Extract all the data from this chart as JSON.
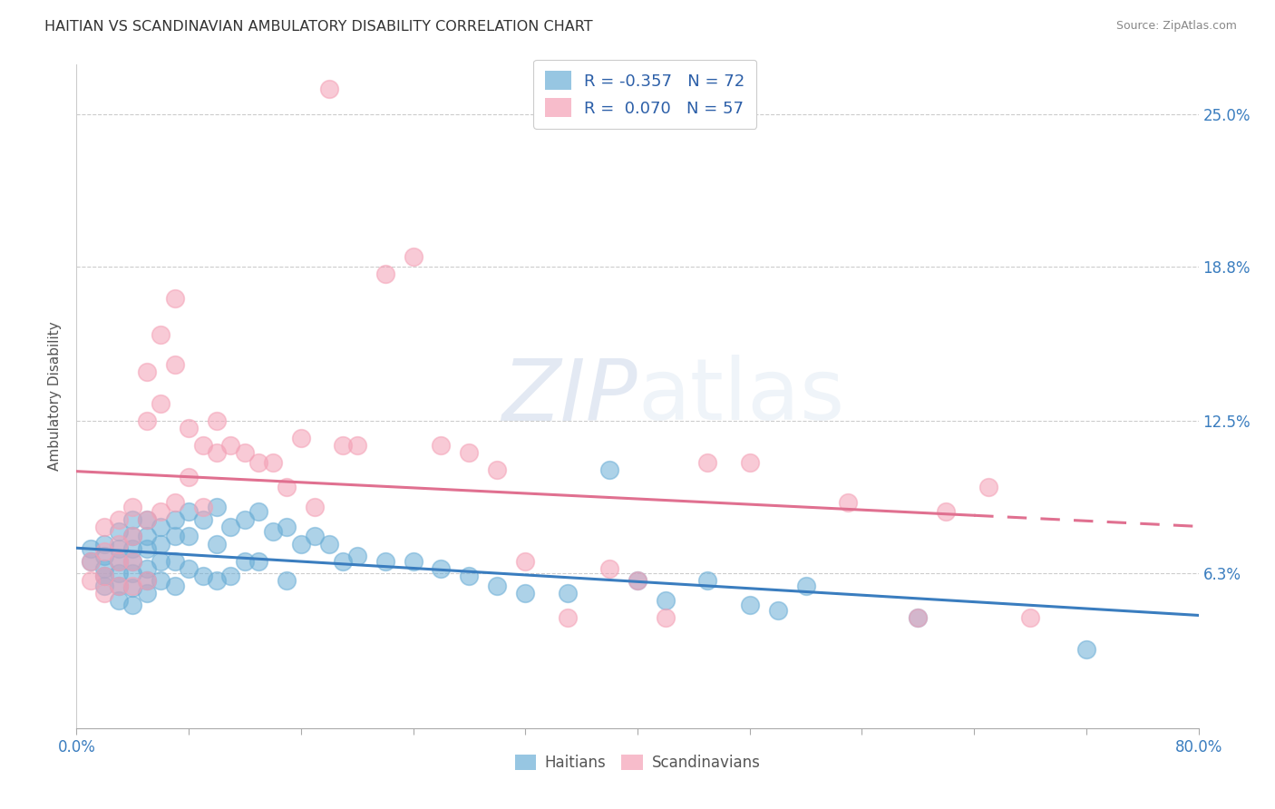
{
  "title": "HAITIAN VS SCANDINAVIAN AMBULATORY DISABILITY CORRELATION CHART",
  "source": "Source: ZipAtlas.com",
  "ylabel": "Ambulatory Disability",
  "ytick_labels": [
    "6.3%",
    "12.5%",
    "18.8%",
    "25.0%"
  ],
  "ytick_values": [
    0.063,
    0.125,
    0.188,
    0.25
  ],
  "xmin": 0.0,
  "xmax": 0.8,
  "ymin": 0.0,
  "ymax": 0.27,
  "haitian_color": "#6baed6",
  "scandinavian_color": "#f4a0b5",
  "haitian_line_color": "#3a7dbf",
  "scandinavian_line_color": "#e07090",
  "legend_R_haitian": "R = -0.357",
  "legend_N_haitian": "N = 72",
  "legend_R_scandinavian": "R =  0.070",
  "legend_N_scandinavian": "N = 57",
  "haitian_x": [
    0.01,
    0.01,
    0.02,
    0.02,
    0.02,
    0.02,
    0.02,
    0.03,
    0.03,
    0.03,
    0.03,
    0.03,
    0.03,
    0.04,
    0.04,
    0.04,
    0.04,
    0.04,
    0.04,
    0.04,
    0.05,
    0.05,
    0.05,
    0.05,
    0.05,
    0.05,
    0.06,
    0.06,
    0.06,
    0.06,
    0.07,
    0.07,
    0.07,
    0.07,
    0.08,
    0.08,
    0.08,
    0.09,
    0.09,
    0.1,
    0.1,
    0.1,
    0.11,
    0.11,
    0.12,
    0.12,
    0.13,
    0.13,
    0.14,
    0.15,
    0.15,
    0.16,
    0.17,
    0.18,
    0.19,
    0.2,
    0.22,
    0.24,
    0.26,
    0.28,
    0.3,
    0.32,
    0.35,
    0.38,
    0.4,
    0.42,
    0.45,
    0.48,
    0.5,
    0.52,
    0.6,
    0.72
  ],
  "haitian_y": [
    0.073,
    0.068,
    0.075,
    0.07,
    0.065,
    0.062,
    0.058,
    0.08,
    0.073,
    0.068,
    0.063,
    0.058,
    0.052,
    0.085,
    0.078,
    0.073,
    0.068,
    0.063,
    0.057,
    0.05,
    0.085,
    0.078,
    0.073,
    0.065,
    0.06,
    0.055,
    0.082,
    0.075,
    0.068,
    0.06,
    0.085,
    0.078,
    0.068,
    0.058,
    0.088,
    0.078,
    0.065,
    0.085,
    0.062,
    0.09,
    0.075,
    0.06,
    0.082,
    0.062,
    0.085,
    0.068,
    0.088,
    0.068,
    0.08,
    0.082,
    0.06,
    0.075,
    0.078,
    0.075,
    0.068,
    0.07,
    0.068,
    0.068,
    0.065,
    0.062,
    0.058,
    0.055,
    0.055,
    0.105,
    0.06,
    0.052,
    0.06,
    0.05,
    0.048,
    0.058,
    0.045,
    0.032
  ],
  "scandinavian_x": [
    0.01,
    0.01,
    0.02,
    0.02,
    0.02,
    0.02,
    0.03,
    0.03,
    0.03,
    0.03,
    0.04,
    0.04,
    0.04,
    0.04,
    0.05,
    0.05,
    0.05,
    0.05,
    0.06,
    0.06,
    0.06,
    0.07,
    0.07,
    0.07,
    0.08,
    0.08,
    0.09,
    0.09,
    0.1,
    0.1,
    0.11,
    0.12,
    0.13,
    0.14,
    0.15,
    0.16,
    0.17,
    0.18,
    0.19,
    0.2,
    0.22,
    0.24,
    0.26,
    0.28,
    0.3,
    0.32,
    0.35,
    0.38,
    0.4,
    0.42,
    0.45,
    0.48,
    0.55,
    0.6,
    0.62,
    0.65,
    0.68
  ],
  "scandinavian_y": [
    0.068,
    0.06,
    0.082,
    0.072,
    0.062,
    0.055,
    0.085,
    0.075,
    0.068,
    0.058,
    0.09,
    0.078,
    0.068,
    0.058,
    0.145,
    0.125,
    0.085,
    0.06,
    0.16,
    0.132,
    0.088,
    0.175,
    0.148,
    0.092,
    0.122,
    0.102,
    0.115,
    0.09,
    0.125,
    0.112,
    0.115,
    0.112,
    0.108,
    0.108,
    0.098,
    0.118,
    0.09,
    0.26,
    0.115,
    0.115,
    0.185,
    0.192,
    0.115,
    0.112,
    0.105,
    0.068,
    0.045,
    0.065,
    0.06,
    0.045,
    0.108,
    0.108,
    0.092,
    0.045,
    0.088,
    0.098,
    0.045
  ]
}
